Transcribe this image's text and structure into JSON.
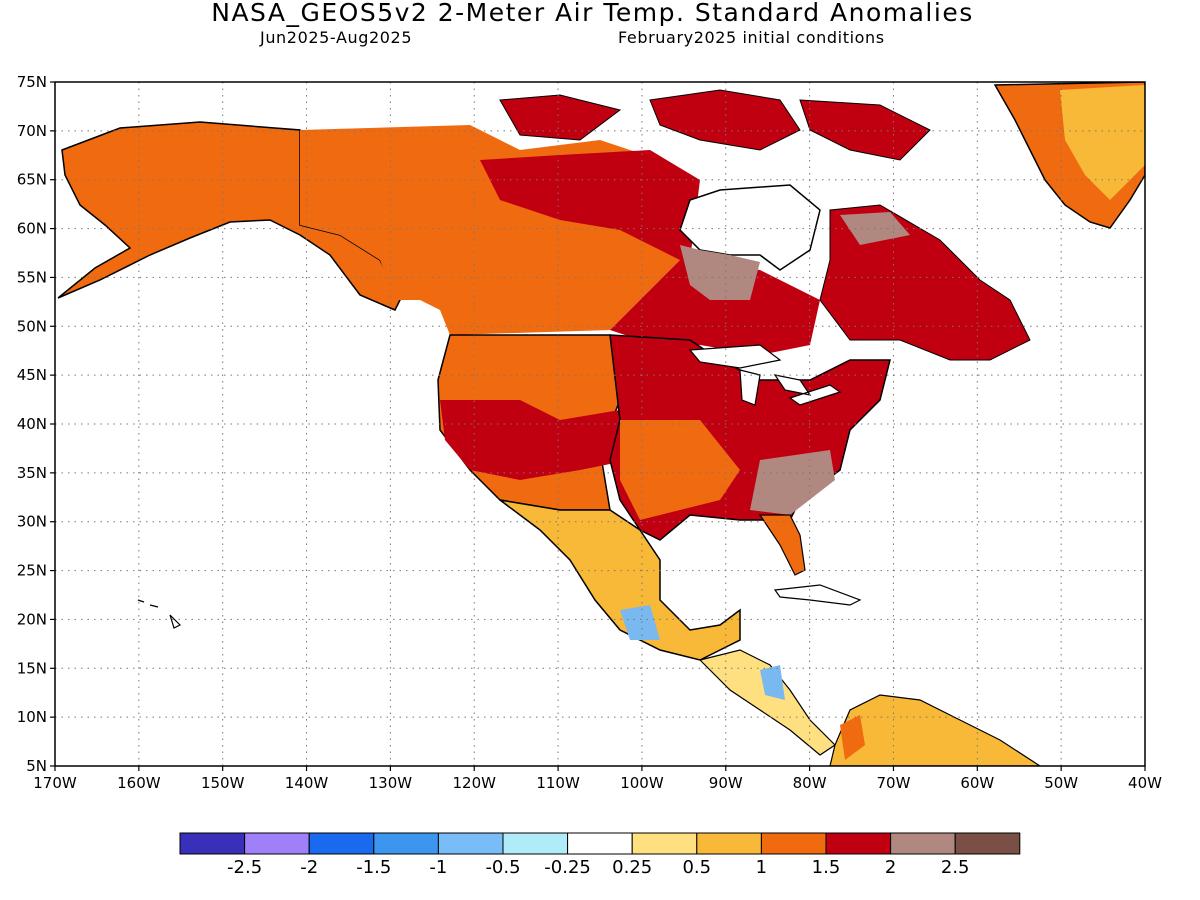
{
  "header": {
    "title": "NASA_GEOS5v2 2-Meter Air Temp. Standard Anomalies",
    "period": "Jun2025-Aug2025",
    "init": "February2025 initial conditions"
  },
  "map": {
    "lon_range": [
      -170,
      -40
    ],
    "lat_range": [
      5,
      75
    ],
    "lat_labels": [
      "75N",
      "70N",
      "65N",
      "60N",
      "55N",
      "50N",
      "45N",
      "40N",
      "35N",
      "30N",
      "25N",
      "20N",
      "15N",
      "10N",
      "5N"
    ],
    "lon_labels": [
      "170W",
      "160W",
      "150W",
      "140W",
      "130W",
      "120W",
      "110W",
      "100W",
      "90W",
      "80W",
      "70W",
      "60W",
      "50W",
      "40W"
    ],
    "ocean_color": "#ffffff",
    "region_fills": [
      {
        "name": "alaska",
        "color": "#f06a10"
      },
      {
        "name": "western-canada",
        "color": "#f06a10"
      },
      {
        "name": "central-canada",
        "color": "#c00010"
      },
      {
        "name": "hudson-bay-rim",
        "color": "#b08880"
      },
      {
        "name": "eastern-canada",
        "color": "#c00010"
      },
      {
        "name": "greenland",
        "color": "#f06a10"
      },
      {
        "name": "greenland-inner",
        "color": "#f8b838"
      },
      {
        "name": "west-conus",
        "color": "#f06a10"
      },
      {
        "name": "central-conus",
        "color": "#c00010"
      },
      {
        "name": "southeast-conus",
        "color": "#c00010"
      },
      {
        "name": "southeast-brown",
        "color": "#b08880"
      },
      {
        "name": "mexico",
        "color": "#f8b838"
      },
      {
        "name": "central-america",
        "color": "#ffe080"
      },
      {
        "name": "central-america-cool",
        "color": "#7ab8f0"
      },
      {
        "name": "south-america",
        "color": "#f8b838"
      }
    ]
  },
  "colorbar": {
    "colors": [
      "#3a2fb8",
      "#a080f8",
      "#1a6af0",
      "#3c96f0",
      "#78bcf8",
      "#b0ecf8",
      "#ffffff",
      "#ffe080",
      "#f8b838",
      "#f06a10",
      "#c00010",
      "#b08880",
      "#7a5046"
    ],
    "labels": [
      "-2.5",
      "-2",
      "-1.5",
      "-1",
      "-0.5",
      "-0.25",
      "0.25",
      "0.5",
      "1",
      "1.5",
      "2",
      "2.5"
    ]
  }
}
